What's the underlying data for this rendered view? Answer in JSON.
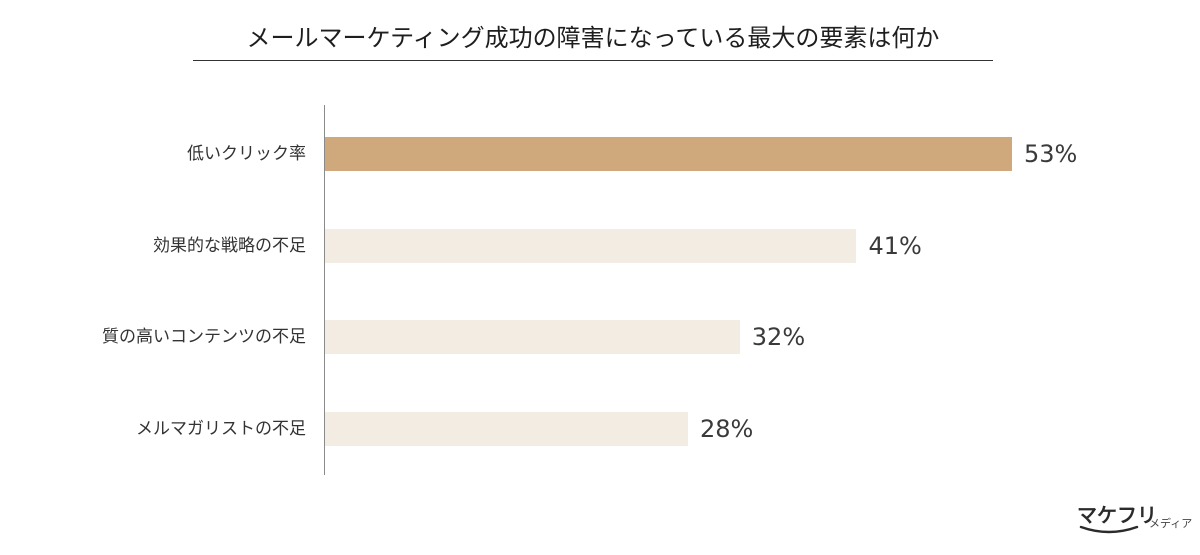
{
  "chart_data": {
    "type": "bar",
    "orientation": "horizontal",
    "title": "メールマーケティング成功の障害になっている最大の要素は何か",
    "categories": [
      "低いクリック率",
      "効果的な戦略の不足",
      "質の高いコンテンツの不足",
      "メルマガリストの不足"
    ],
    "values": [
      53,
      41,
      32,
      28
    ],
    "value_labels": [
      "53%",
      "41%",
      "32%",
      "28%"
    ],
    "unit": "%",
    "xlim": [
      0,
      53
    ],
    "grid": false,
    "highlight_index": 0,
    "colors": {
      "highlight": "#cfa87c",
      "normal": "#f3ece2"
    }
  },
  "logo": {
    "main": "マケフリ",
    "sub": "メディア"
  }
}
